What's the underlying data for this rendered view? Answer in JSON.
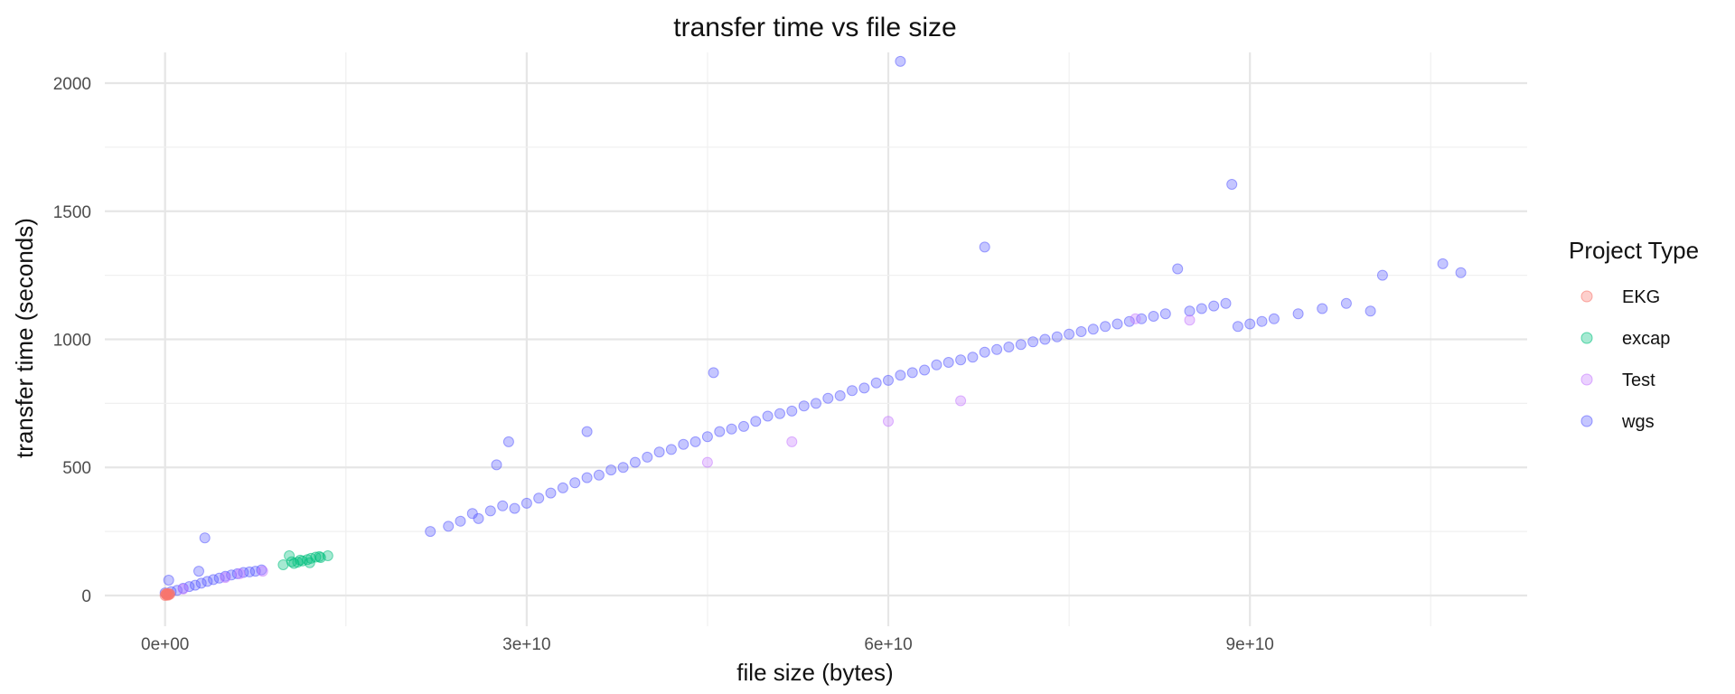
{
  "chart_data": {
    "type": "scatter",
    "title": "transfer time vs file size",
    "xlabel": "file size (bytes)",
    "ylabel": "transfer time (seconds)",
    "xlim": [
      -5000000000,
      113000000000
    ],
    "ylim": [
      -120,
      2120
    ],
    "x_ticks": [
      0,
      30000000000,
      60000000000,
      90000000000
    ],
    "x_tick_labels": [
      "0e+00",
      "3e+10",
      "6e+10",
      "9e+10"
    ],
    "y_ticks": [
      0,
      500,
      1000,
      1500,
      2000
    ],
    "y_tick_labels": [
      "0",
      "500",
      "1000",
      "1500",
      "2000"
    ],
    "grid": true,
    "legend": {
      "title": "Project Type",
      "position": "right"
    },
    "series": [
      {
        "name": "EKG",
        "color": "#F8766D",
        "points": [
          [
            0,
            0
          ],
          [
            100000000,
            2
          ],
          [
            200000000,
            3
          ],
          [
            300000000,
            4
          ],
          [
            400000000,
            5
          ],
          [
            150000000,
            8
          ],
          [
            250000000,
            1
          ],
          [
            50000000,
            6
          ],
          [
            350000000,
            7
          ],
          [
            120000000,
            4
          ]
        ]
      },
      {
        "name": "excap",
        "color": "#00BF7D",
        "points": [
          [
            9800000000,
            120
          ],
          [
            10300000000,
            155
          ],
          [
            10700000000,
            125
          ],
          [
            11000000000,
            130
          ],
          [
            11400000000,
            135
          ],
          [
            11800000000,
            140
          ],
          [
            12100000000,
            145
          ],
          [
            12500000000,
            150
          ],
          [
            12900000000,
            148
          ],
          [
            13500000000,
            155
          ],
          [
            10500000000,
            132
          ],
          [
            11200000000,
            138
          ],
          [
            12000000000,
            128
          ],
          [
            12800000000,
            152
          ]
        ]
      },
      {
        "name": "Test",
        "color": "#C77CFF",
        "points": [
          [
            1500000000,
            25
          ],
          [
            5000000000,
            70
          ],
          [
            6200000000,
            85
          ],
          [
            8100000000,
            95
          ],
          [
            45000000000,
            520
          ],
          [
            52000000000,
            600
          ],
          [
            60000000000,
            680
          ],
          [
            66000000000,
            760
          ],
          [
            80500000000,
            1080
          ],
          [
            85000000000,
            1075
          ]
        ]
      },
      {
        "name": "wgs",
        "color": "#5A5BFF",
        "points": [
          [
            0,
            10
          ],
          [
            500000000,
            15
          ],
          [
            1000000000,
            20
          ],
          [
            1500000000,
            28
          ],
          [
            2000000000,
            35
          ],
          [
            2500000000,
            40
          ],
          [
            3000000000,
            48
          ],
          [
            3300000000,
            225
          ],
          [
            3500000000,
            55
          ],
          [
            4000000000,
            62
          ],
          [
            4500000000,
            68
          ],
          [
            5000000000,
            75
          ],
          [
            5500000000,
            80
          ],
          [
            6000000000,
            85
          ],
          [
            6500000000,
            90
          ],
          [
            7000000000,
            92
          ],
          [
            7500000000,
            95
          ],
          [
            8000000000,
            100
          ],
          [
            300000000,
            60
          ],
          [
            2800000000,
            95
          ],
          [
            22000000000,
            250
          ],
          [
            23500000000,
            270
          ],
          [
            24500000000,
            290
          ],
          [
            25500000000,
            320
          ],
          [
            26000000000,
            300
          ],
          [
            27000000000,
            330
          ],
          [
            27500000000,
            510
          ],
          [
            28000000000,
            350
          ],
          [
            28500000000,
            600
          ],
          [
            29000000000,
            340
          ],
          [
            30000000000,
            360
          ],
          [
            31000000000,
            380
          ],
          [
            32000000000,
            400
          ],
          [
            33000000000,
            420
          ],
          [
            34000000000,
            440
          ],
          [
            35000000000,
            460
          ],
          [
            35000000000,
            640
          ],
          [
            36000000000,
            470
          ],
          [
            37000000000,
            490
          ],
          [
            38000000000,
            500
          ],
          [
            39000000000,
            520
          ],
          [
            40000000000,
            540
          ],
          [
            41000000000,
            560
          ],
          [
            42000000000,
            570
          ],
          [
            43000000000,
            590
          ],
          [
            44000000000,
            600
          ],
          [
            45000000000,
            620
          ],
          [
            45500000000,
            870
          ],
          [
            46000000000,
            640
          ],
          [
            47000000000,
            650
          ],
          [
            48000000000,
            660
          ],
          [
            49000000000,
            680
          ],
          [
            50000000000,
            700
          ],
          [
            51000000000,
            710
          ],
          [
            52000000000,
            720
          ],
          [
            53000000000,
            740
          ],
          [
            54000000000,
            750
          ],
          [
            55000000000,
            770
          ],
          [
            56000000000,
            780
          ],
          [
            57000000000,
            800
          ],
          [
            58000000000,
            810
          ],
          [
            59000000000,
            830
          ],
          [
            60000000000,
            840
          ],
          [
            61000000000,
            2085
          ],
          [
            61000000000,
            860
          ],
          [
            62000000000,
            870
          ],
          [
            63000000000,
            880
          ],
          [
            64000000000,
            900
          ],
          [
            65000000000,
            910
          ],
          [
            66000000000,
            920
          ],
          [
            67000000000,
            930
          ],
          [
            68000000000,
            1360
          ],
          [
            68000000000,
            950
          ],
          [
            69000000000,
            960
          ],
          [
            70000000000,
            970
          ],
          [
            71000000000,
            980
          ],
          [
            72000000000,
            990
          ],
          [
            73000000000,
            1000
          ],
          [
            74000000000,
            1010
          ],
          [
            75000000000,
            1020
          ],
          [
            76000000000,
            1030
          ],
          [
            77000000000,
            1040
          ],
          [
            78000000000,
            1050
          ],
          [
            79000000000,
            1060
          ],
          [
            80000000000,
            1070
          ],
          [
            81000000000,
            1080
          ],
          [
            82000000000,
            1090
          ],
          [
            83000000000,
            1100
          ],
          [
            84000000000,
            1275
          ],
          [
            85000000000,
            1110
          ],
          [
            86000000000,
            1120
          ],
          [
            87000000000,
            1130
          ],
          [
            88500000000,
            1605
          ],
          [
            88000000000,
            1140
          ],
          [
            89000000000,
            1050
          ],
          [
            90000000000,
            1060
          ],
          [
            91000000000,
            1070
          ],
          [
            92000000000,
            1080
          ],
          [
            94000000000,
            1100
          ],
          [
            96000000000,
            1120
          ],
          [
            98000000000,
            1140
          ],
          [
            100000000000,
            1110
          ],
          [
            101000000000,
            1250
          ],
          [
            106000000000,
            1295
          ],
          [
            107500000000,
            1260
          ]
        ]
      }
    ]
  }
}
